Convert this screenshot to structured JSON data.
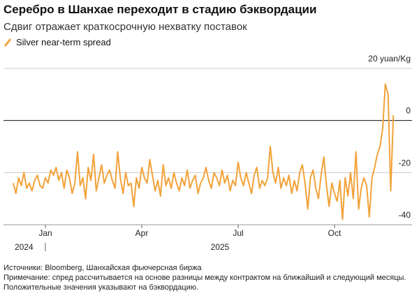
{
  "chart_data": {
    "type": "line",
    "title": "Серебро в Шанхае переходит в стадию бэквордации",
    "subtitle": "Сдвиг отражает краткосрочную нехватку поставок",
    "x": [
      "2024-12",
      "2024-12",
      "2024-12",
      "2024-12",
      "2024-12",
      "2024-12",
      "2024-12",
      "2024-12",
      "2024-12",
      "2024-12",
      "2024-12",
      "2024-12",
      "2025-01",
      "2025-01",
      "2025-01",
      "2025-01",
      "2025-01",
      "2025-01",
      "2025-01",
      "2025-01",
      "2025-01",
      "2025-01",
      "2025-01",
      "2025-01",
      "2025-02",
      "2025-02",
      "2025-02",
      "2025-02",
      "2025-02",
      "2025-02",
      "2025-02",
      "2025-02",
      "2025-02",
      "2025-02",
      "2025-02",
      "2025-02",
      "2025-03",
      "2025-03",
      "2025-03",
      "2025-03",
      "2025-03",
      "2025-03",
      "2025-03",
      "2025-03",
      "2025-03",
      "2025-03",
      "2025-03",
      "2025-03",
      "2025-04",
      "2025-04",
      "2025-04",
      "2025-04",
      "2025-04",
      "2025-04",
      "2025-04",
      "2025-04",
      "2025-04",
      "2025-04",
      "2025-04",
      "2025-04",
      "2025-05",
      "2025-05",
      "2025-05",
      "2025-05",
      "2025-05",
      "2025-05",
      "2025-05",
      "2025-05",
      "2025-05",
      "2025-05",
      "2025-05",
      "2025-05",
      "2025-06",
      "2025-06",
      "2025-06",
      "2025-06",
      "2025-06",
      "2025-06",
      "2025-06",
      "2025-06",
      "2025-06",
      "2025-06",
      "2025-06",
      "2025-06",
      "2025-07",
      "2025-07",
      "2025-07",
      "2025-07",
      "2025-07",
      "2025-07",
      "2025-07",
      "2025-07",
      "2025-07",
      "2025-07",
      "2025-07",
      "2025-07",
      "2025-08",
      "2025-08",
      "2025-08",
      "2025-08",
      "2025-08",
      "2025-08",
      "2025-08",
      "2025-08",
      "2025-08",
      "2025-08",
      "2025-08",
      "2025-08",
      "2025-09",
      "2025-09",
      "2025-09",
      "2025-09",
      "2025-09",
      "2025-09",
      "2025-09",
      "2025-09",
      "2025-09",
      "2025-09",
      "2025-09",
      "2025-09",
      "2025-10",
      "2025-10",
      "2025-10",
      "2025-10",
      "2025-10",
      "2025-10",
      "2025-10",
      "2025-10",
      "2025-10",
      "2025-10",
      "2025-10",
      "2025-10",
      "2025-11",
      "2025-11",
      "2025-11",
      "2025-11",
      "2025-11",
      "2025-11",
      "2025-11",
      "2025-11",
      "2025-11",
      "2025-11",
      "2025-11"
    ],
    "series": [
      {
        "name": "Silver near-term spread",
        "color": "#f2a23a",
        "values": [
          -24,
          -28,
          -22,
          -25,
          -20,
          -26,
          -24,
          -27,
          -23,
          -21,
          -25,
          -26,
          -22,
          -24,
          -19,
          -21,
          -18,
          -23,
          -20,
          -26,
          -19,
          -22,
          -28,
          -24,
          -12,
          -25,
          -22,
          -30,
          -18,
          -23,
          -13,
          -27,
          -22,
          -17,
          -24,
          -21,
          -19,
          -23,
          -26,
          -12,
          -22,
          -28,
          -20,
          -25,
          -24,
          -33,
          -22,
          -26,
          -18,
          -22,
          -24,
          -15,
          -21,
          -27,
          -23,
          -29,
          -17,
          -25,
          -22,
          -26,
          -20,
          -24,
          -27,
          -22,
          -25,
          -19,
          -26,
          -23,
          -21,
          -28,
          -24,
          -22,
          -18,
          -23,
          -26,
          -20,
          -22,
          -25,
          -19,
          -24,
          -21,
          -27,
          -23,
          -25,
          -16,
          -22,
          -25,
          -20,
          -24,
          -28,
          -21,
          -18,
          -26,
          -23,
          -25,
          -22,
          -10,
          -20,
          -24,
          -18,
          -26,
          -22,
          -25,
          -21,
          -28,
          -23,
          -27,
          -20,
          -17,
          -24,
          -34,
          -22,
          -19,
          -26,
          -30,
          -21,
          -14,
          -25,
          -33,
          -24,
          -28,
          -31,
          -23,
          -38,
          -22,
          -29,
          -20,
          -30,
          -12,
          -34,
          -26,
          -22,
          -25,
          -37,
          -22,
          -18,
          -13,
          -10,
          -3,
          14,
          10,
          -27,
          2
        ]
      }
    ],
    "ylim": [
      -40,
      20
    ],
    "yticks": [
      -40,
      -20,
      0,
      {
        "value": 20,
        "label": "20 yuan/Kg"
      }
    ],
    "xticks": [
      {
        "value": "2025-01",
        "label": "Jan"
      },
      {
        "value": "2025-04",
        "label": "Apr"
      },
      {
        "value": "2025-07",
        "label": "Jul"
      },
      {
        "value": "2025-10",
        "label": "Oct"
      }
    ],
    "years": [
      "2024",
      "2025"
    ],
    "grid": true,
    "source": "Источники: Bloomberg, Шанхайская фьючерсная биржа",
    "note": "Примечание: спред рассчитывается на основе разницы между контрактом на ближайший и следующий месяцы. Положительные значения указывают на бэквордацию."
  }
}
